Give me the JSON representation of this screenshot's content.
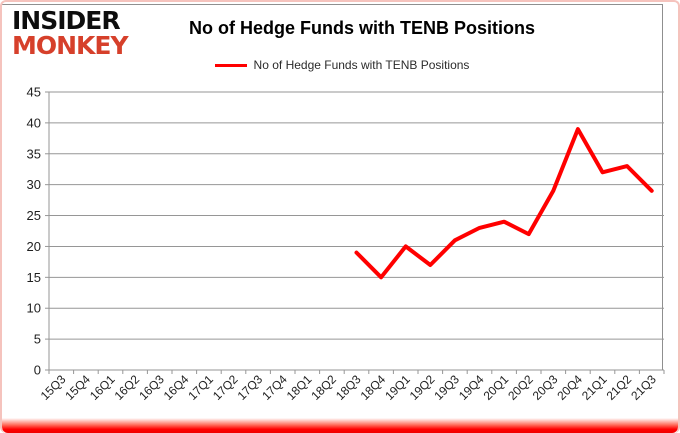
{
  "logo": {
    "line1": "INSIDER",
    "line2": "MONKEY"
  },
  "header": {
    "title": "No of Hedge Funds with TENB Positions"
  },
  "legend": {
    "label": "No of Hedge Funds with TENB Positions"
  },
  "colors": {
    "series_line": "#ff0000",
    "gridline": "#969696",
    "axis_text": "#1f1f1f",
    "logo_black": "#0d0d0d",
    "logo_red": "#d6402b",
    "frame_pink": "#f5c3bd",
    "bottom_bar_red": "#ff0000"
  },
  "chart_data": {
    "type": "line",
    "title": "No of Hedge Funds with TENB Positions",
    "xlabel": "",
    "ylabel": "",
    "ylim": [
      0,
      45
    ],
    "ytick_step": 5,
    "yticks": [
      0,
      5,
      10,
      15,
      20,
      25,
      30,
      35,
      40,
      45
    ],
    "grid": true,
    "legend_position": "top",
    "categories": [
      "15Q3",
      "15Q4",
      "16Q1",
      "16Q2",
      "16Q3",
      "16Q4",
      "17Q1",
      "17Q2",
      "17Q3",
      "17Q4",
      "18Q1",
      "18Q2",
      "18Q3",
      "18Q4",
      "19Q1",
      "19Q2",
      "19Q3",
      "19Q4",
      "20Q1",
      "20Q2",
      "20Q3",
      "20Q4",
      "21Q1",
      "21Q2",
      "21Q3"
    ],
    "series": [
      {
        "name": "No of Hedge Funds with TENB Positions",
        "color": "#ff0000",
        "values": [
          null,
          null,
          null,
          null,
          null,
          null,
          null,
          null,
          null,
          null,
          null,
          null,
          19,
          15,
          20,
          17,
          21,
          23,
          24,
          22,
          29,
          39,
          32,
          33,
          29
        ]
      }
    ]
  }
}
